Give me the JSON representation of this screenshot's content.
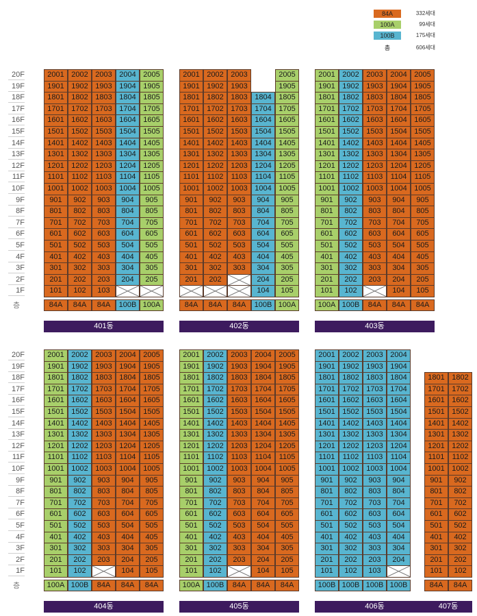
{
  "legend": [
    {
      "type": "84A",
      "count": "332세대",
      "color": "#d9691f"
    },
    {
      "type": "100A",
      "count": "99세대",
      "color": "#a8cf6a"
    },
    {
      "type": "100B",
      "count": "175세대",
      "color": "#58b5d0"
    },
    {
      "type": "총",
      "count": "606세대",
      "color": ""
    }
  ],
  "floor_header": "층",
  "floors_desc": [
    "20F",
    "19F",
    "18F",
    "17F",
    "16F",
    "15F",
    "14F",
    "13F",
    "12F",
    "11F",
    "10F",
    "9F",
    "8F",
    "7F",
    "6F",
    "5F",
    "4F",
    "3F",
    "2F",
    "1F"
  ],
  "buildings": [
    {
      "name": "401동",
      "types": [
        "84A",
        "84A",
        "84A",
        "100B",
        "100A"
      ],
      "top": 20,
      "missing": {
        "1": [
          4,
          5
        ]
      },
      "rowTop": {}
    },
    {
      "name": "402동",
      "types": [
        "84A",
        "84A",
        "84A",
        "100B",
        "100A"
      ],
      "top": 20,
      "missing": {
        "1": [
          1,
          2,
          3
        ]
      },
      "rowTop": {
        "20": [
          4
        ]
      },
      "override": {
        "1": {
          "1": "84A",
          "2": "84A"
        },
        "2": {
          "3": "empty"
        },
        "20": {
          "4": "none"
        },
        "19": {
          "4": "none"
        }
      }
    },
    {
      "name": "403동",
      "types": [
        "100A",
        "100B",
        "84A",
        "84A",
        "84A"
      ],
      "top": 20,
      "missing": {
        "1": [
          3
        ]
      }
    },
    {
      "name": "404동",
      "types": [
        "100A",
        "100B",
        "84A",
        "84A",
        "84A"
      ],
      "top": 20,
      "missing": {
        "1": [
          3
        ]
      }
    },
    {
      "name": "405동",
      "types": [
        "100A",
        "100B",
        "84A",
        "84A",
        "84A"
      ],
      "top": 20,
      "missing": {
        "1": [
          3
        ]
      }
    },
    {
      "name": "406동",
      "types": [
        "100B",
        "100B",
        "100B",
        "100B"
      ],
      "top": 20,
      "missing": {
        "1": [
          4
        ]
      }
    },
    {
      "name": "407동",
      "types": [
        "84A",
        "84A"
      ],
      "top": 18,
      "missing": {}
    }
  ]
}
